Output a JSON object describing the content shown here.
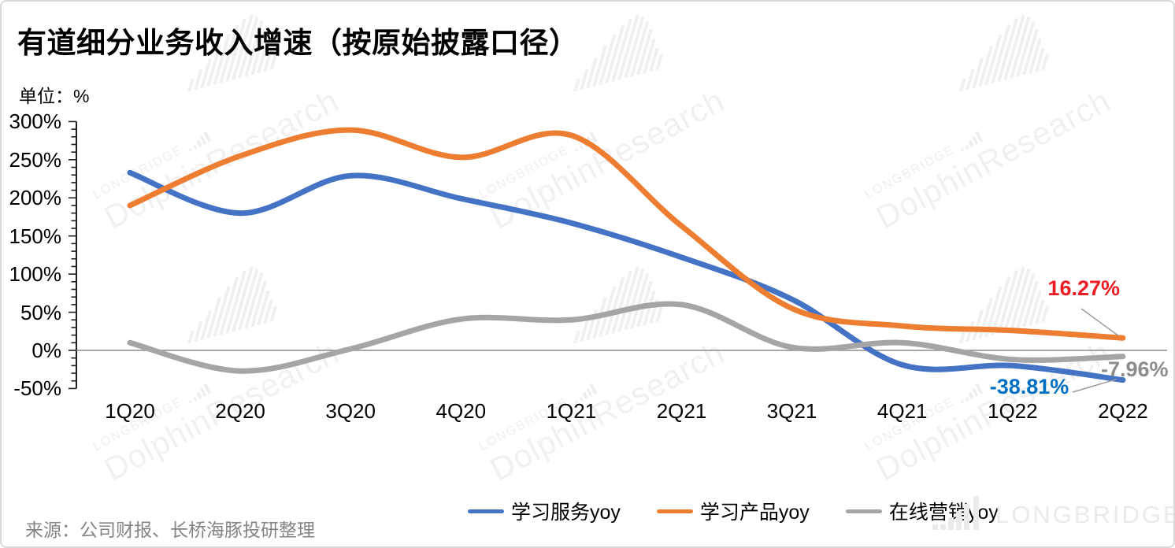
{
  "title": "有道细分业务收入增速（按原始披露口径）",
  "unit_label": "单位：%",
  "source_note": "来源：公司财报、长桥海豚投研整理",
  "brand_logo": "LONGBRIDGE",
  "watermark": {
    "brand": "LONGBRIDGE",
    "research": "DolphinResearch"
  },
  "annotations": [
    {
      "series": "学习产品yoy",
      "text": "16.27%",
      "color": "#ee1d23"
    },
    {
      "series": "学习服务yoy",
      "text": "-38.81%",
      "color": "#0070c0"
    },
    {
      "series": "在线营销yoy",
      "text": "-7.96%",
      "color": "#8c8c8c"
    }
  ],
  "chart_data": {
    "type": "line",
    "smoothed": true,
    "categories": [
      "1Q20",
      "2Q20",
      "3Q20",
      "4Q20",
      "1Q21",
      "2Q21",
      "3Q21",
      "4Q21",
      "1Q22",
      "2Q22"
    ],
    "series": [
      {
        "name": "学习服务yoy",
        "color": "#4472C4",
        "values": [
          233,
          180,
          229,
          199,
          167,
          122,
          67,
          -19,
          -20,
          -38.81
        ]
      },
      {
        "name": "学习产品yoy",
        "color": "#ED7D31",
        "values": [
          190,
          255,
          289,
          253,
          282,
          163,
          55,
          32,
          26,
          16.27
        ]
      },
      {
        "name": "在线营销yoy",
        "color": "#A5A5A5",
        "values": [
          10,
          -27,
          2,
          41,
          40,
          60,
          4,
          10,
          -12,
          -7.96
        ]
      }
    ],
    "ylabel": "%",
    "ylim": [
      -50,
      300
    ],
    "ytick_step": 50,
    "yminor_step": 10,
    "ytick_format": "{v}%",
    "grid": false,
    "zero_baseline": true,
    "legend_position": "bottom"
  }
}
